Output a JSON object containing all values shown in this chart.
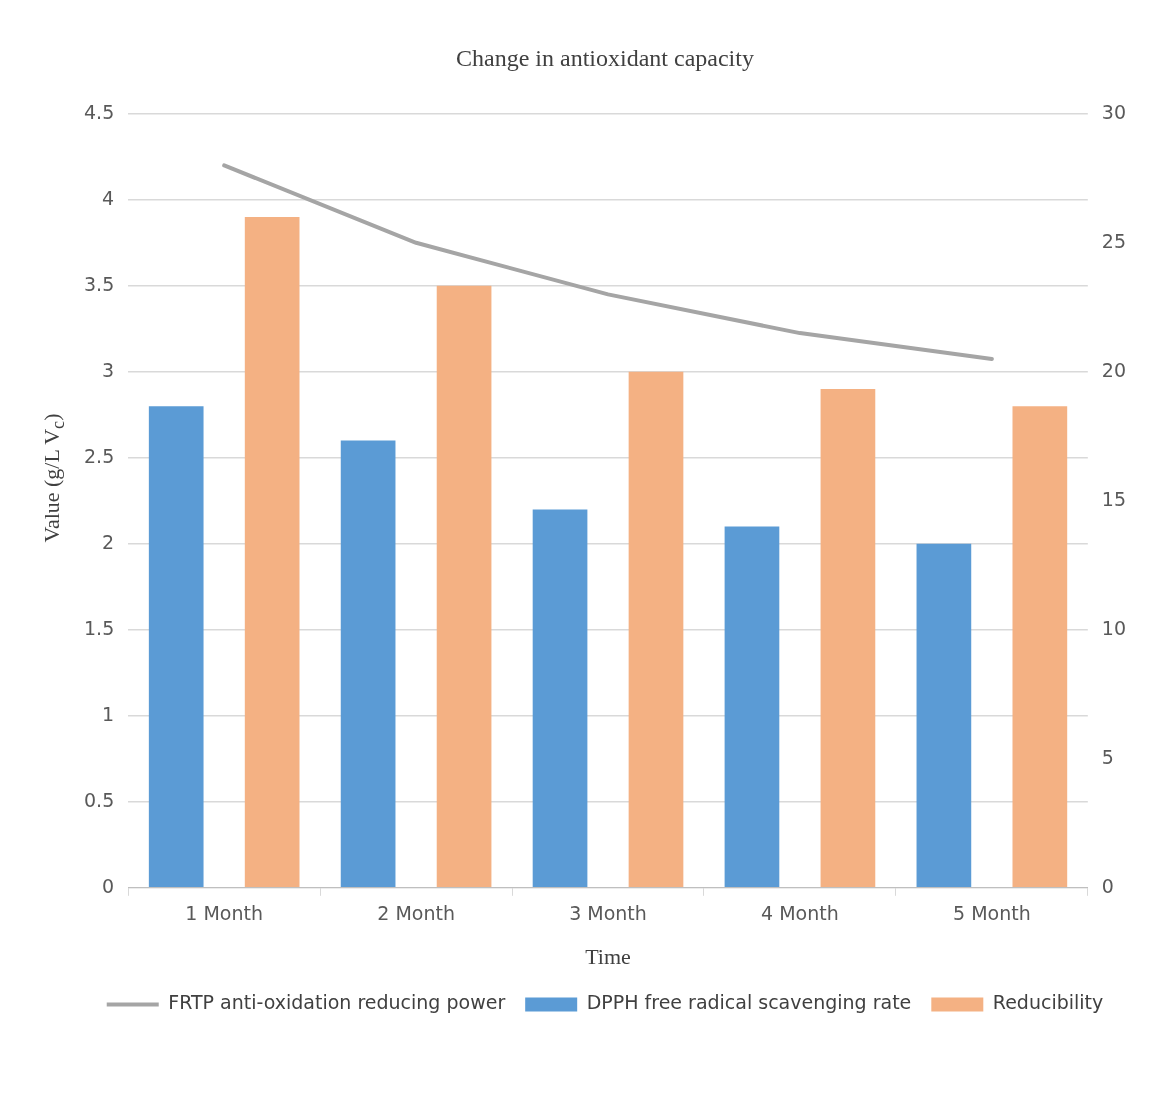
{
  "chart_data": {
    "type": "bar",
    "title": "Change in antioxidant capacity",
    "xlabel": "Time",
    "ylabel": "Value (g/L V$_{c}$)",
    "categories": [
      "1 Month",
      "2 Month",
      "3 Month",
      "4 Month",
      "5 Month"
    ],
    "series": [
      {
        "name": "DPPH free radical scavenging rate",
        "color": "#5b9bd5",
        "values": [
          2.8,
          2.6,
          2.2,
          2.1,
          2.0
        ]
      },
      {
        "name": "Reducibility",
        "color": "#f4b183",
        "values": [
          3.9,
          3.5,
          3.0,
          2.9,
          2.8
        ]
      },
      {
        "name": "FRTP anti-oxidation reducing power",
        "type": "line",
        "axis": "y2",
        "color": "#a5a5a5",
        "values": [
          28,
          25,
          23,
          21.5,
          20.5
        ]
      }
    ],
    "ylim": [
      0,
      4.5
    ],
    "yticks": [
      0,
      0.5,
      1,
      1.5,
      2,
      2.5,
      3,
      3.5,
      4,
      4.5
    ],
    "y2lim": [
      0,
      30
    ],
    "y2ticks": [
      0,
      5,
      10,
      15,
      20,
      25,
      30
    ],
    "grid": "y",
    "legend": "bottom",
    "marker": "none",
    "line_style": "solid"
  }
}
